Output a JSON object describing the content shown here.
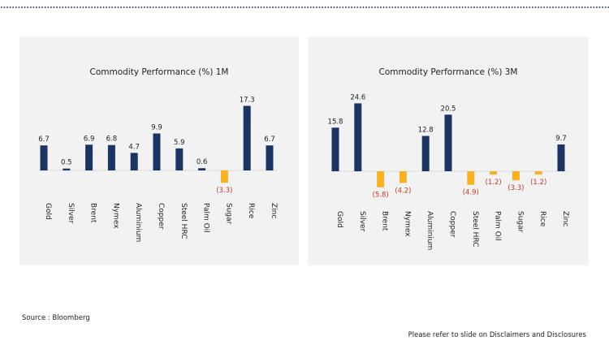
{
  "footer": {
    "source": "Source : Bloomberg",
    "disclaimer": "Please refer to slide on Disclaimers and Disclosures"
  },
  "colors": {
    "positive": "#1c3461",
    "negative": "#f5b324",
    "negative_label": "#c0392b",
    "panel": "#f2f2f2"
  },
  "chart_data": [
    {
      "type": "bar",
      "title": "Commodity Performance (%) 1M",
      "categories": [
        "Gold",
        "Silver",
        "Brent",
        "Nymex",
        "Aluminium",
        "Copper",
        "Steel HRC",
        "Palm Oil",
        "Sugar",
        "Rice",
        "Zinc"
      ],
      "values": [
        6.7,
        0.5,
        6.9,
        6.8,
        4.7,
        9.9,
        5.9,
        0.6,
        -3.3,
        17.3,
        6.7
      ],
      "labels": [
        "6.7",
        "0.5",
        "6.9",
        "6.8",
        "4.7",
        "9.9",
        "5.9",
        "0.6",
        "(3.3)",
        "17.3",
        "6.7"
      ],
      "xlabel": "",
      "ylabel": "",
      "grid": false,
      "legend": "none"
    },
    {
      "type": "bar",
      "title": "Commodity Performance (%) 3M",
      "categories": [
        "Gold",
        "Silver",
        "Brent",
        "Nymex",
        "Aluminium",
        "Copper",
        "Steel HRC",
        "Palm Oil",
        "Sugar",
        "Rice",
        "Zinc"
      ],
      "values": [
        15.8,
        24.6,
        -5.8,
        -4.2,
        12.8,
        20.5,
        -4.9,
        -1.2,
        -3.3,
        -1.2,
        9.7
      ],
      "labels": [
        "15.8",
        "24.6",
        "(5.8)",
        "(4.2)",
        "12.8",
        "20.5",
        "(4.9)",
        "(1.2)",
        "(3.3)",
        "(1.2)",
        "9.7"
      ],
      "xlabel": "",
      "ylabel": "",
      "grid": false,
      "legend": "none"
    }
  ]
}
